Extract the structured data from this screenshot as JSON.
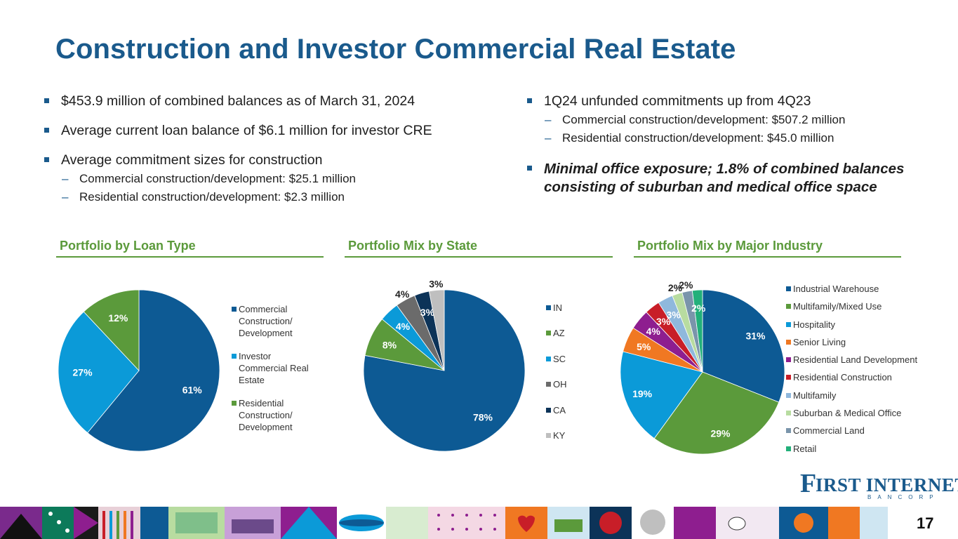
{
  "title": "Construction and Investor Commercial Real Estate",
  "left_bullets": {
    "b1": "$453.9 million of combined balances as of March 31, 2024",
    "b2": "Average current loan balance of $6.1 million for investor CRE",
    "b3": "Average commitment sizes for construction",
    "b3_sub1": "Commercial construction/development: $25.1 million",
    "b3_sub2": "Residential construction/development: $2.3 million"
  },
  "right_bullets": {
    "b1": "1Q24 unfunded commitments up from 4Q23",
    "b1_sub1": "Commercial construction/development: $507.2 million",
    "b1_sub2": "Residential construction/development: $45.0 million",
    "b2": "Minimal office exposure; 1.8% of combined balances consisting of suburban and medical office space"
  },
  "chart_data": [
    {
      "type": "pie",
      "title": "Portfolio by Loan Type",
      "categories": [
        "Commercial Construction/ Development",
        "Investor Commercial Real Estate",
        "Residential Construction/ Development"
      ],
      "values": [
        61,
        27,
        12
      ],
      "labels": [
        "61%",
        "27%",
        "12%"
      ],
      "colors": [
        "#0d5a94",
        "#0b9ad8",
        "#5b9a3b"
      ],
      "legend": "right"
    },
    {
      "type": "pie",
      "title": "Portfolio Mix by State",
      "categories": [
        "IN",
        "AZ",
        "SC",
        "OH",
        "CA",
        "KY"
      ],
      "values": [
        78,
        8,
        4,
        4,
        3,
        3
      ],
      "labels": [
        "78%",
        "8%",
        "4%",
        "4%",
        "3%",
        "3%"
      ],
      "colors": [
        "#0d5a94",
        "#5b9a3b",
        "#0b9ad8",
        "#6b6b6b",
        "#0c3358",
        "#bfbfbf"
      ],
      "legend": "right"
    },
    {
      "type": "pie",
      "title": "Portfolio Mix by Major Industry",
      "categories": [
        "Industrial Warehouse",
        "Multifamily/Mixed Use",
        "Hospitality",
        "Senior Living",
        "Residential Land Development",
        "Residential Construction",
        "Multifamily",
        "Suburban & Medical Office",
        "Commercial Land",
        "Retail"
      ],
      "values": [
        31,
        29,
        19,
        5,
        4,
        3,
        3,
        2,
        2,
        2
      ],
      "labels": [
        "31%",
        "29%",
        "19%",
        "5%",
        "4%",
        "3%",
        "3%",
        "2%",
        "2%",
        "2%"
      ],
      "colors": [
        "#0d5a94",
        "#5b9a3b",
        "#0b9ad8",
        "#f07822",
        "#8e1e8f",
        "#c81e28",
        "#8fb8dc",
        "#b8dca0",
        "#7a95ab",
        "#22b07a"
      ],
      "legend": "right"
    }
  ],
  "logo": {
    "initial": "F",
    "name": "IRST INTERNET",
    "sub": "BANCORP"
  },
  "page_number": "17"
}
